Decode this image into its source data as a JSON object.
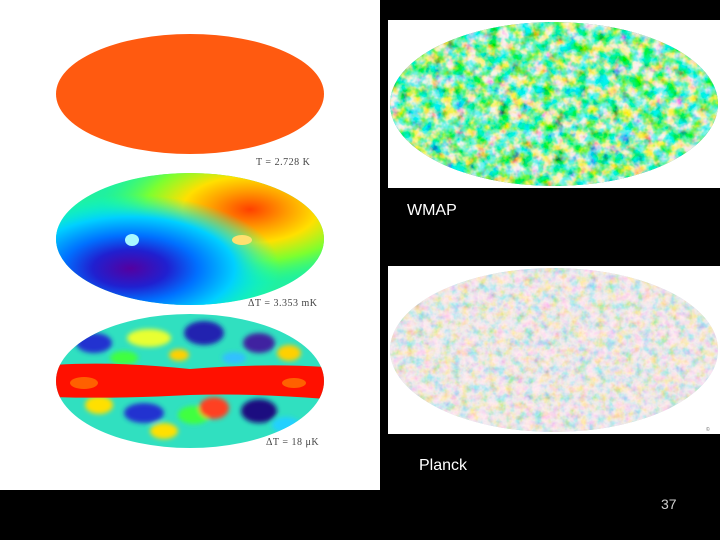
{
  "left_panel": {
    "captions": {
      "temperature": "T = 2.728 K",
      "dipole": "ΔT = 3.353 mK",
      "fluctuations": "ΔT = 18 μK"
    }
  },
  "right_panel": {
    "wmap_label": "WMAP",
    "planck_label": "Planck"
  },
  "slide": {
    "page_number": "37"
  },
  "colors": {
    "uniform_orange": "#ff5a10",
    "background": "#000000"
  }
}
